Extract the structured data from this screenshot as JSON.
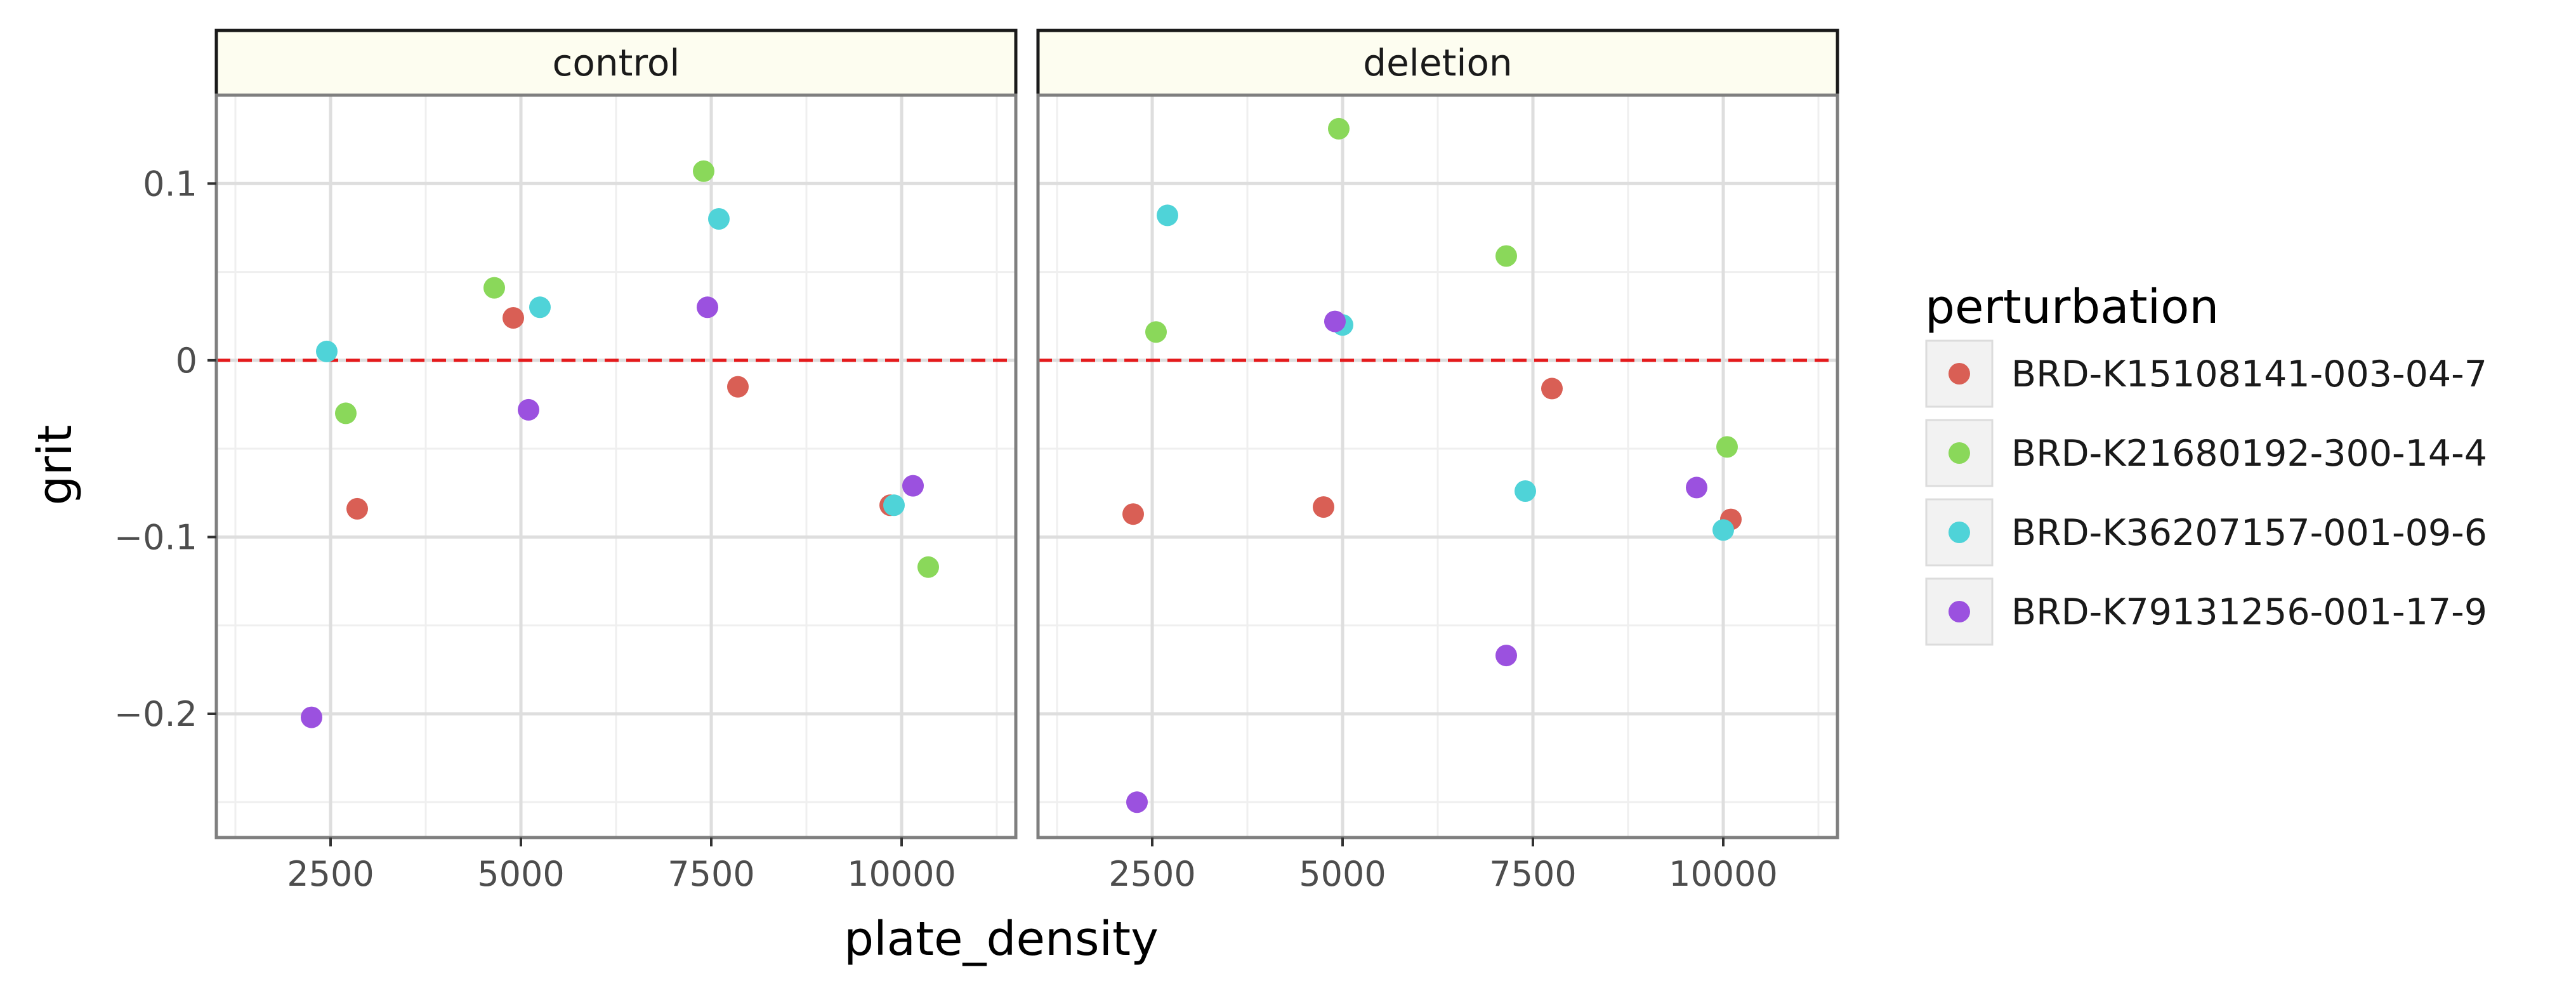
{
  "chart_data": {
    "type": "scatter",
    "xlabel": "plate_density",
    "ylabel": "grit",
    "xlim": [
      1000,
      11500
    ],
    "ylim": [
      -0.27,
      0.15
    ],
    "x_ticks": [
      2500,
      5000,
      7500,
      10000
    ],
    "x_tick_labels": [
      "2500",
      "5000",
      "7500",
      "10000"
    ],
    "y_ticks": [
      0.1,
      0,
      -0.1,
      -0.2
    ],
    "y_tick_labels": [
      "0.1",
      "0",
      "−0.1",
      "−0.2"
    ],
    "y_minor_ticks": [
      0.05,
      -0.05,
      -0.15,
      -0.25
    ],
    "grid": true,
    "reference_line": {
      "y": 0,
      "color": "#e41a1c",
      "style": "dashed"
    },
    "legend": {
      "title": "perturbation",
      "placement": "right",
      "entries": [
        {
          "label": "BRD-K15108141-003-04-7",
          "color": "#d95f55"
        },
        {
          "label": "BRD-K21680192-300-14-4",
          "color": "#8ad85a"
        },
        {
          "label": "BRD-K36207157-001-09-6",
          "color": "#4fd3d8"
        },
        {
          "label": "BRD-K79131256-001-17-9",
          "color": "#9b51df"
        }
      ]
    },
    "panels": [
      {
        "strip": "control",
        "series": [
          {
            "name": "BRD-K15108141-003-04-7",
            "points": [
              [
                2850,
                -0.084
              ],
              [
                4900,
                0.024
              ],
              [
                7850,
                -0.015
              ],
              [
                9850,
                -0.082
              ]
            ]
          },
          {
            "name": "BRD-K21680192-300-14-4",
            "points": [
              [
                2700,
                -0.03
              ],
              [
                4650,
                0.041
              ],
              [
                7400,
                0.107
              ],
              [
                10350,
                -0.117
              ]
            ]
          },
          {
            "name": "BRD-K36207157-001-09-6",
            "points": [
              [
                2450,
                0.005
              ],
              [
                5250,
                0.03
              ],
              [
                7600,
                0.08
              ],
              [
                9900,
                -0.082
              ]
            ]
          },
          {
            "name": "BRD-K79131256-001-17-9",
            "points": [
              [
                2250,
                -0.202
              ],
              [
                5100,
                -0.028
              ],
              [
                7450,
                0.03
              ],
              [
                10150,
                -0.071
              ]
            ]
          }
        ]
      },
      {
        "strip": "deletion",
        "series": [
          {
            "name": "BRD-K15108141-003-04-7",
            "points": [
              [
                2250,
                -0.087
              ],
              [
                4750,
                -0.083
              ],
              [
                7750,
                -0.016
              ],
              [
                10100,
                -0.09
              ]
            ]
          },
          {
            "name": "BRD-K21680192-300-14-4",
            "points": [
              [
                2550,
                0.016
              ],
              [
                4950,
                0.131
              ],
              [
                7150,
                0.059
              ],
              [
                10050,
                -0.049
              ]
            ]
          },
          {
            "name": "BRD-K36207157-001-09-6",
            "points": [
              [
                2700,
                0.082
              ],
              [
                5000,
                0.02
              ],
              [
                7400,
                -0.074
              ],
              [
                10000,
                -0.096
              ]
            ]
          },
          {
            "name": "BRD-K79131256-001-17-9",
            "points": [
              [
                2300,
                -0.25
              ],
              [
                4900,
                0.022
              ],
              [
                7150,
                -0.167
              ],
              [
                9650,
                -0.072
              ]
            ]
          }
        ]
      }
    ]
  }
}
